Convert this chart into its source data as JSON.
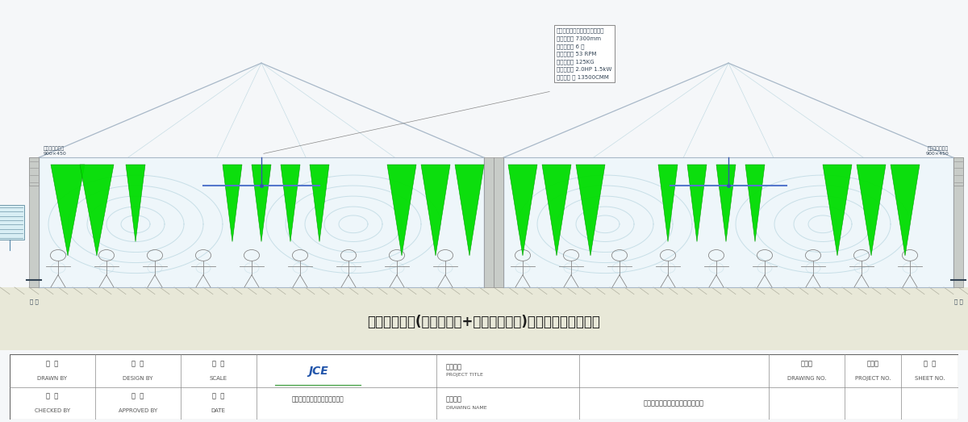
{
  "bg_color": "#f5f7f9",
  "drawing_bg": "#ffffff",
  "line_color": "#a8ccd8",
  "roof_color": "#a8b8c8",
  "wall_color": "#a8b8c8",
  "green_fan": "#00dd00",
  "blue_fan_rod": "#3355aa",
  "blue_fan_bar": "#5577cc",
  "title": "车间扇机组合(工业大风扇+蜃发式冷风机)通风降温立面示意图",
  "spec_title": "「瑞泰风」工业大风扇规格说明",
  "spec_lines": [
    "风扇直径： 7300mm",
    "叶片数量： 6 片",
    "风扇转速： 53 RPM",
    "风扇重量： 125KG",
    "风扇功率： 2.0HP 1.5kW",
    "风量：　 ： 13500CMM"
  ],
  "auto_vent_label_1": "自动排送送风口",
  "auto_vent_label_2": "900×450",
  "cooler_label": "蜃发式冷风机",
  "window_label": "窗 户",
  "company": "广东嘉昌通风降温科技有限公司",
  "drawing_name": "车间扇机组合通风降温立面示意图"
}
